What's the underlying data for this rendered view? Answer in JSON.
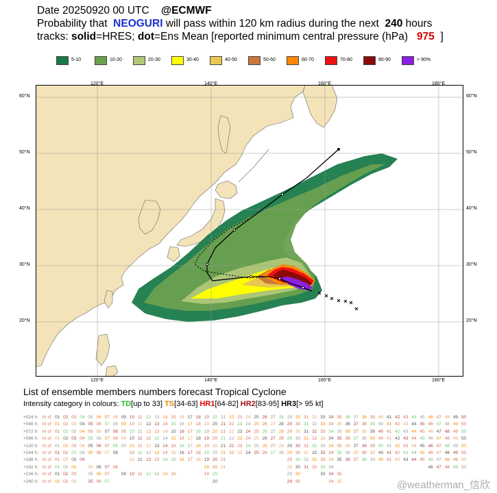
{
  "header": {
    "line1_date": "Date 20250920 00 UTC",
    "line1_source": "@ECMWF",
    "line2_a": "Probability that",
    "line2_storm": "NEOGURI",
    "line2_b": "will pass within 120 km radius during the next",
    "line2_hours": "240",
    "line2_c": "hours",
    "line3_a": "tracks:",
    "line3_solid": "solid",
    "line3_b": "=HRES;",
    "line3_dot": "dot",
    "line3_c": "=Ens Mean [reported minimum central pressure (hPa)",
    "line3_pressure": "975",
    "line3_end": "]"
  },
  "legend": [
    {
      "label": "5-10",
      "color": "#1a7a4a"
    },
    {
      "label": "10-20",
      "color": "#6aa050"
    },
    {
      "label": "20-30",
      "color": "#b0c878"
    },
    {
      "label": "30-40",
      "color": "#ffff00"
    },
    {
      "label": "40-50",
      "color": "#e8c850"
    },
    {
      "label": "50-60",
      "color": "#c8783a"
    },
    {
      "label": "60-70",
      "color": "#ff8800"
    },
    {
      "label": "70-80",
      "color": "#ee1010"
    },
    {
      "label": "80-90",
      "color": "#8b0a0a"
    },
    {
      "label": "> 90%",
      "color": "#8a20e0"
    }
  ],
  "map": {
    "lon_labels_top": [
      "120°E",
      "140°E",
      "160°E",
      "180°E"
    ],
    "lon_labels_bottom": [
      "120°E",
      "140°E",
      "160°E",
      "180°E"
    ],
    "lat_labels_left": [
      "60°N",
      "50°N",
      "40°N",
      "30°N",
      "20°N"
    ],
    "lat_labels_right": [
      "60°N",
      "50°N",
      "40°N",
      "30°N",
      "20°N"
    ],
    "ocean_color": "#ffffff",
    "land_color": "#f3e3b8"
  },
  "ensemble": {
    "title": "List of ensemble members numbers forecast Tropical Cyclone",
    "intensity_prefix": "Intensity category in colours:",
    "td": "TD",
    "td_range": "[up to 33]",
    "ts": "TS",
    "ts_range": "[34-63]",
    "hr1": "HR1",
    "hr1_range": "[64-82]",
    "hr2": "HR2",
    "hr2_range": "[83-95]",
    "hr3": "HR3",
    "hr3_range": "[> 95 kt]",
    "rows": [
      {
        "label": "+024 h:",
        "missing": []
      },
      {
        "label": "+048 h:",
        "missing": []
      },
      {
        "label": "+072 h:",
        "missing": []
      },
      {
        "label": "+096 h:",
        "missing": []
      },
      {
        "label": "+120 h:",
        "missing": []
      },
      {
        "label": "+144 h:",
        "missing": [
          9
        ]
      },
      {
        "label": "+168 h:",
        "missing": [
          5,
          6,
          7,
          8,
          9,
          22,
          23,
          24,
          25,
          26,
          27,
          28
        ]
      },
      {
        "label": "+192 h:",
        "missing": [
          4,
          9,
          10,
          11,
          12,
          13,
          14,
          15,
          16,
          17,
          18,
          22,
          23,
          24,
          25,
          26,
          27,
          28,
          35,
          36,
          37,
          38,
          39,
          40,
          41,
          42,
          43,
          44,
          45
        ]
      },
      {
        "label": "+216 h:",
        "missing": [
          4,
          8,
          16,
          17,
          18,
          21,
          22,
          23,
          24,
          25,
          26,
          27,
          28,
          31,
          32,
          36,
          37,
          38,
          39,
          40,
          41,
          42,
          43,
          44,
          45,
          46,
          47,
          48,
          49,
          50
        ]
      },
      {
        "label": "+240 h:",
        "missing": [
          4,
          8,
          9,
          10,
          11,
          12,
          13,
          14,
          15,
          16,
          17,
          18,
          19,
          21,
          22,
          23,
          24,
          25,
          26,
          27,
          28,
          31,
          32,
          33,
          36,
          37,
          38,
          39,
          40,
          41,
          42,
          43,
          44,
          45,
          46,
          47,
          48,
          49,
          50
        ]
      }
    ],
    "palette": [
      "#e8a060",
      "#e07050",
      "#ff8800",
      "#999999",
      "#66cc66",
      "#d86a50",
      "#b54040",
      "#555555"
    ]
  },
  "watermark": "@weatherman_信欣"
}
